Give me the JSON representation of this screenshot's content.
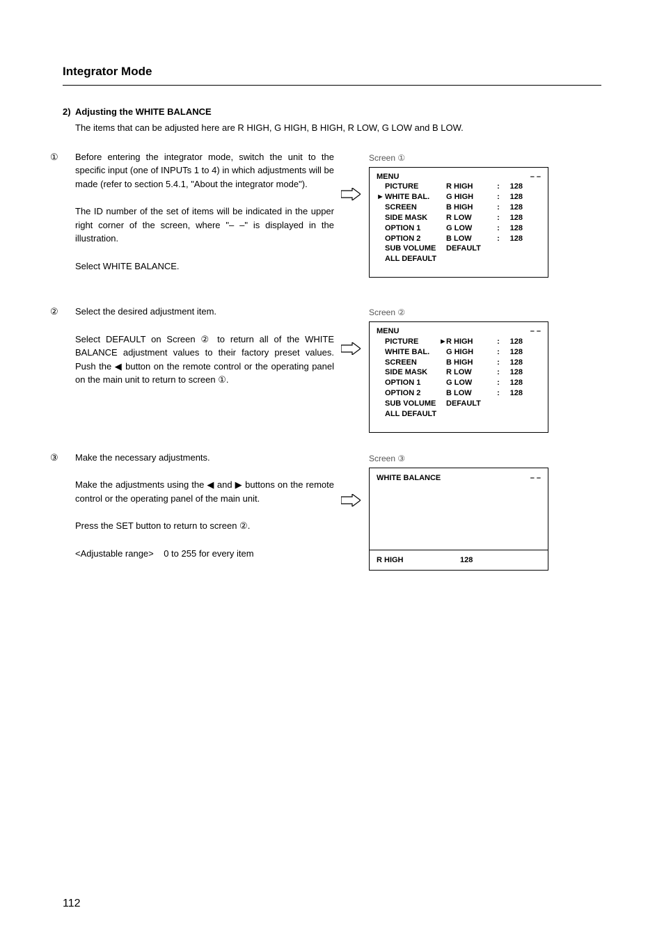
{
  "page": {
    "title": "Integrator Mode",
    "number": "112"
  },
  "section": {
    "heading_prefix": "2)",
    "heading": "Adjusting the WHITE BALANCE",
    "intro": "The items that can be adjusted here are R HIGH, G HIGH, B HIGH, R LOW, G LOW and B LOW."
  },
  "steps": [
    {
      "num": "①",
      "para1": "Before entering the integrator mode, switch the unit to the specific input (one of INPUTs 1 to 4) in which adjustments will be made (refer to section 5.4.1, \"About the integrator mode\").",
      "para2": "The ID number of the set of items will be indicated in the upper right corner of the screen, where \"– –\" is displayed in the illustration.",
      "para3": "Select WHITE BALANCE.",
      "screen_label": "Screen ①",
      "osd": {
        "title": "MENU",
        "corner": "– –",
        "rows": [
          {
            "left": "PICTURE",
            "pointer": false,
            "mid": "R HIGH",
            "midptr": false,
            "sep": ":",
            "right": "128"
          },
          {
            "left": "WHITE BAL.",
            "pointer": true,
            "mid": "G HIGH",
            "midptr": false,
            "sep": ":",
            "right": "128"
          },
          {
            "left": "SCREEN",
            "pointer": false,
            "mid": "B HIGH",
            "midptr": false,
            "sep": ":",
            "right": "128"
          },
          {
            "left": "SIDE MASK",
            "pointer": false,
            "mid": "R LOW",
            "midptr": false,
            "sep": ":",
            "right": "128"
          },
          {
            "left": "OPTION 1",
            "pointer": false,
            "mid": "G LOW",
            "midptr": false,
            "sep": ":",
            "right": "128"
          },
          {
            "left": "OPTION 2",
            "pointer": false,
            "mid": "B LOW",
            "midptr": false,
            "sep": ":",
            "right": "128"
          },
          {
            "left": "SUB VOLUME",
            "pointer": false,
            "mid": "DEFAULT",
            "midptr": false,
            "sep": "",
            "right": ""
          },
          {
            "left": "ALL DEFAULT",
            "pointer": false,
            "mid": "",
            "midptr": false,
            "sep": "",
            "right": ""
          }
        ]
      }
    },
    {
      "num": "②",
      "para1": "Select the desired adjustment item.",
      "para2": "Select DEFAULT on Screen ② to return all of the WHITE BALANCE adjustment values to their factory preset values. Push the ◀ button on the remote control or the operating panel on the main unit to return to screen ①.",
      "screen_label": "Screen ②",
      "osd": {
        "title": "MENU",
        "corner": "– –",
        "rows": [
          {
            "left": "PICTURE",
            "pointer": false,
            "mid": "R HIGH",
            "midptr": true,
            "sep": ":",
            "right": "128"
          },
          {
            "left": "WHITE BAL.",
            "pointer": false,
            "mid": "G HIGH",
            "midptr": false,
            "sep": ":",
            "right": "128"
          },
          {
            "left": "SCREEN",
            "pointer": false,
            "mid": "B HIGH",
            "midptr": false,
            "sep": ":",
            "right": "128"
          },
          {
            "left": "SIDE MASK",
            "pointer": false,
            "mid": "R LOW",
            "midptr": false,
            "sep": ":",
            "right": "128"
          },
          {
            "left": "OPTION 1",
            "pointer": false,
            "mid": "G LOW",
            "midptr": false,
            "sep": ":",
            "right": "128"
          },
          {
            "left": "OPTION 2",
            "pointer": false,
            "mid": "B LOW",
            "midptr": false,
            "sep": ":",
            "right": "128"
          },
          {
            "left": "SUB VOLUME",
            "pointer": false,
            "mid": "DEFAULT",
            "midptr": false,
            "sep": "",
            "right": ""
          },
          {
            "left": "ALL DEFAULT",
            "pointer": false,
            "mid": "",
            "midptr": false,
            "sep": "",
            "right": ""
          }
        ]
      }
    },
    {
      "num": "③",
      "para1": "Make the necessary adjustments.",
      "para2": "Make the adjustments using the ◀ and ▶ buttons on the remote control or the operating panel of the main unit.",
      "para3": "Press the SET button to return to screen ②.",
      "para4_prefix": "<Adjustable range>",
      "para4_value": "0 to 255 for every item",
      "screen_label": "Screen ③",
      "osd_wb": {
        "title": "WHITE BALANCE",
        "corner": "– –",
        "bottom_label": "R HIGH",
        "bottom_value": "128"
      }
    }
  ]
}
